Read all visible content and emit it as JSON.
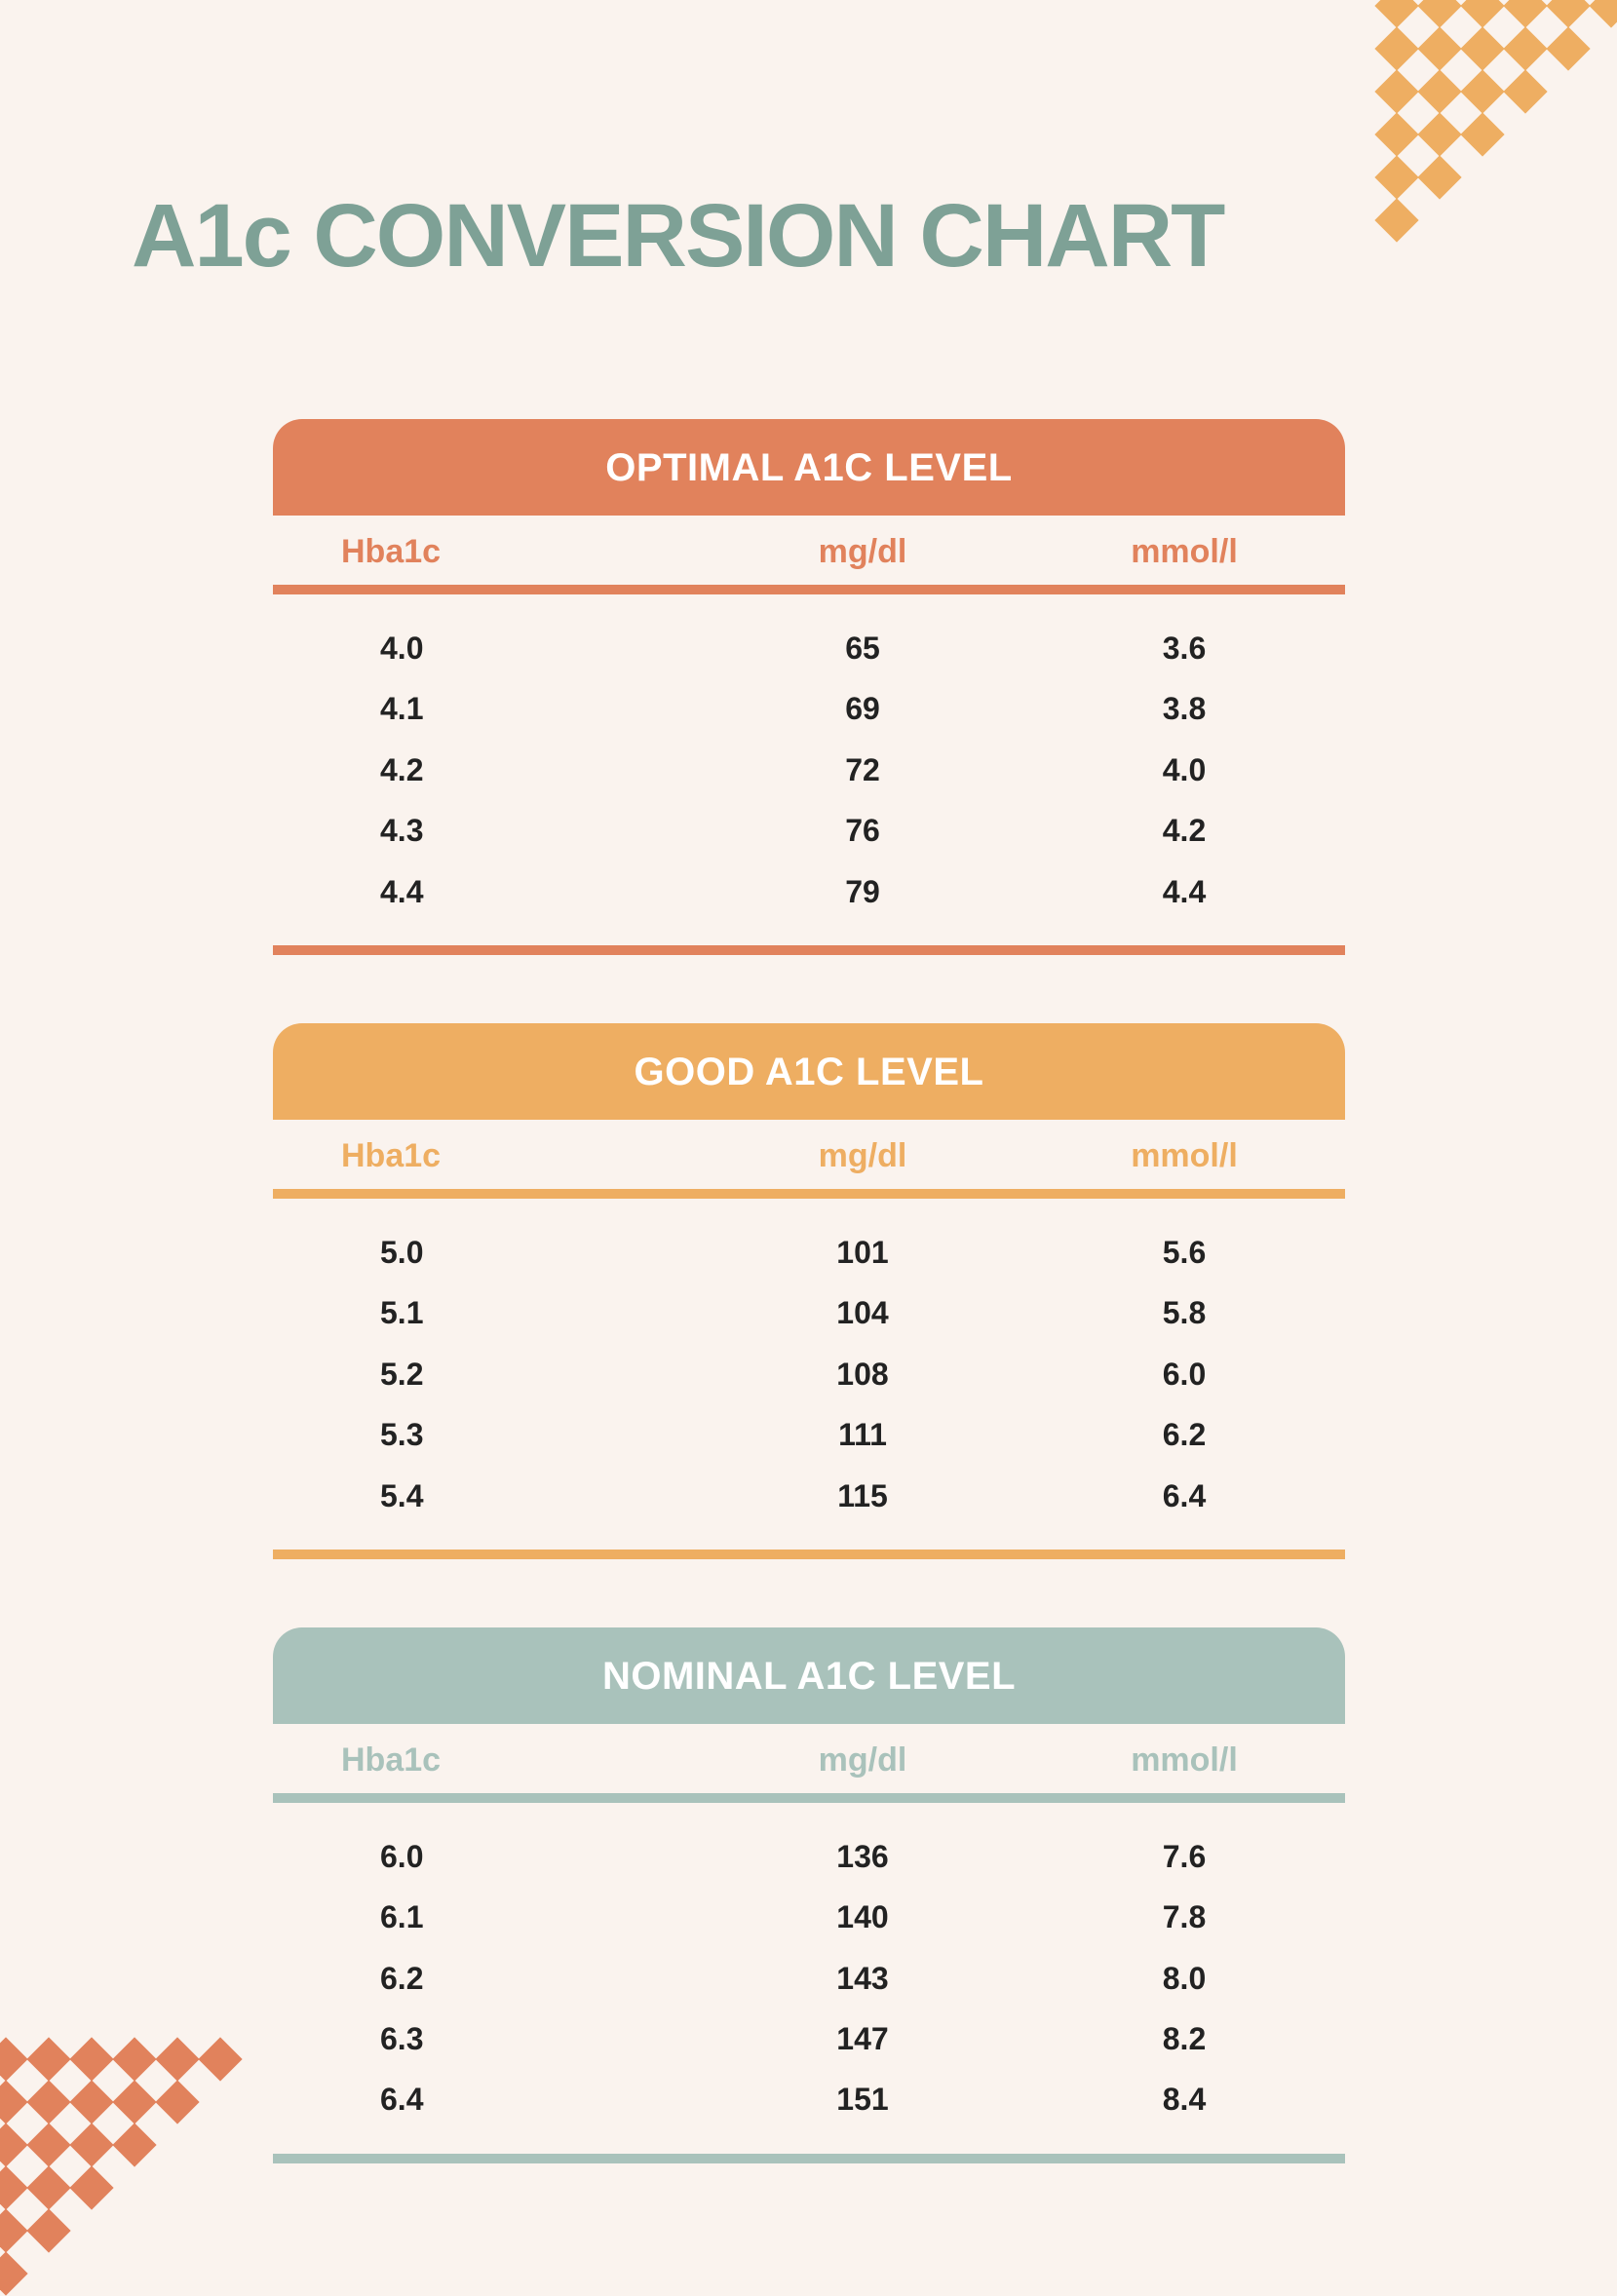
{
  "title": "A1c CONVERSION CHART",
  "title_color": "#7ea196",
  "background_color": "#faf3ee",
  "row_text_color": "#222222",
  "row_fontsize": 32,
  "title_fontsize": 92,
  "header_fontsize": 40,
  "colheader_fontsize": 34,
  "deco_top_color": "#eeae62",
  "deco_bottom_color": "#e1825c",
  "sections": [
    {
      "id": "optimal",
      "header": "OPTIMAL A1C LEVEL",
      "pill_color": "#e1825c",
      "accent_color": "#e1825c",
      "column_label_color": "#e1825c",
      "rule_color": "#e1825c",
      "columns": [
        "Hba1c",
        "mg/dl",
        "mmol/l"
      ],
      "rows": [
        [
          "4.0",
          "65",
          "3.6"
        ],
        [
          "4.1",
          "69",
          "3.8"
        ],
        [
          "4.2",
          "72",
          "4.0"
        ],
        [
          "4.3",
          "76",
          "4.2"
        ],
        [
          "4.4",
          "79",
          "4.4"
        ]
      ]
    },
    {
      "id": "good",
      "header": "GOOD A1C LEVEL",
      "pill_color": "#eeae62",
      "accent_color": "#eeae62",
      "column_label_color": "#eeae62",
      "rule_color": "#eeae62",
      "columns": [
        "Hba1c",
        "mg/dl",
        "mmol/l"
      ],
      "rows": [
        [
          "5.0",
          "101",
          "5.6"
        ],
        [
          "5.1",
          "104",
          "5.8"
        ],
        [
          "5.2",
          "108",
          "6.0"
        ],
        [
          "5.3",
          "111",
          "6.2"
        ],
        [
          "5.4",
          "115",
          "6.4"
        ]
      ]
    },
    {
      "id": "nominal",
      "header": "NOMINAL A1C LEVEL",
      "pill_color": "#a9c2bb",
      "accent_color": "#a9c2bb",
      "column_label_color": "#a9c2bb",
      "rule_color": "#a9c2bb",
      "columns": [
        "Hba1c",
        "mg/dl",
        "mmol/l"
      ],
      "rows": [
        [
          "6.0",
          "136",
          "7.6"
        ],
        [
          "6.1",
          "140",
          "7.8"
        ],
        [
          "6.2",
          "143",
          "8.0"
        ],
        [
          "6.3",
          "147",
          "8.2"
        ],
        [
          "6.4",
          "151",
          "8.4"
        ]
      ]
    }
  ]
}
